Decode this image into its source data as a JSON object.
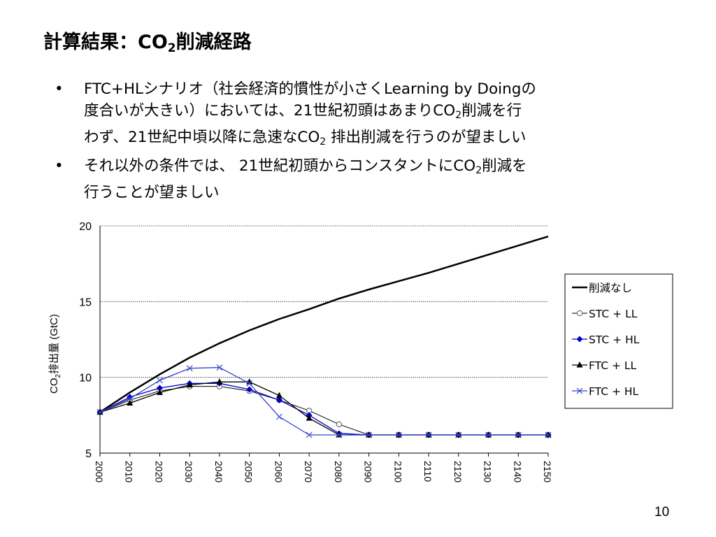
{
  "title": {
    "text_main": "計算結果：CO",
    "text_sub": "2",
    "text_tail": "削減経路"
  },
  "bullets": [
    {
      "marker": "•",
      "line1": "FTC+HLシナリオ（社会経済的慣性が小さくLearning by Doingの",
      "line2_a": "度合いが大きい）においては、21世紀初頭はあまりCO",
      "line2_sub": "2",
      "line2_b": "削減を行",
      "line3_a": "わず、21世紀中頃以降に急速なCO",
      "line3_sub": "2",
      "line3_b": " 排出削減を行うのが望ましい"
    },
    {
      "marker": "•",
      "line1_a": "それ以外の条件では、 21世紀初頭からコンスタントにCO",
      "line1_sub": "2",
      "line1_b": "削減を",
      "line2": "行うことが望ましい"
    }
  ],
  "page_number": "10",
  "chart_data": {
    "type": "line",
    "ylabel_main": "CO",
    "ylabel_sub": "2",
    "ylabel_tail": "排出量 (GtC)",
    "xlabel": "",
    "ylim": [
      5,
      20
    ],
    "yticks": [
      5,
      10,
      15,
      20
    ],
    "grid": "horizontal dotted",
    "legend_position": "right",
    "x": [
      2000,
      2010,
      2020,
      2030,
      2040,
      2050,
      2060,
      2070,
      2080,
      2090,
      2100,
      2110,
      2120,
      2130,
      2140,
      2150
    ],
    "series": [
      {
        "name": "削減なし",
        "color": "#000000",
        "marker": "none",
        "width": 2.5,
        "values": [
          7.7,
          9.0,
          10.2,
          11.3,
          12.25,
          13.1,
          13.85,
          14.5,
          15.2,
          15.8,
          16.35,
          16.9,
          17.5,
          18.1,
          18.7,
          19.3
        ]
      },
      {
        "name": "STC + LL",
        "color": "#000000",
        "marker": "circle",
        "width": 1,
        "values": [
          7.7,
          8.5,
          9.1,
          9.4,
          9.4,
          9.1,
          8.5,
          7.8,
          6.9,
          6.2,
          6.2,
          6.2,
          6.2,
          6.2,
          6.2,
          6.2
        ]
      },
      {
        "name": "STC + HL",
        "color": "#0000cc",
        "marker": "diamond",
        "width": 1.3,
        "values": [
          7.7,
          8.7,
          9.3,
          9.6,
          9.6,
          9.2,
          8.5,
          7.5,
          6.3,
          6.2,
          6.2,
          6.2,
          6.2,
          6.2,
          6.2,
          6.2
        ]
      },
      {
        "name": "FTC + LL",
        "color": "#000000",
        "marker": "triangle",
        "width": 1.3,
        "values": [
          7.7,
          8.3,
          9.0,
          9.5,
          9.7,
          9.7,
          8.8,
          7.3,
          6.2,
          6.2,
          6.2,
          6.2,
          6.2,
          6.2,
          6.2,
          6.2
        ]
      },
      {
        "name": "FTC + HL",
        "color": "#3344cc",
        "marker": "x",
        "width": 1.3,
        "values": [
          7.7,
          8.6,
          9.8,
          10.6,
          10.65,
          9.6,
          7.4,
          6.2,
          6.2,
          6.2,
          6.2,
          6.2,
          6.2,
          6.2,
          6.2,
          6.2
        ]
      }
    ]
  }
}
